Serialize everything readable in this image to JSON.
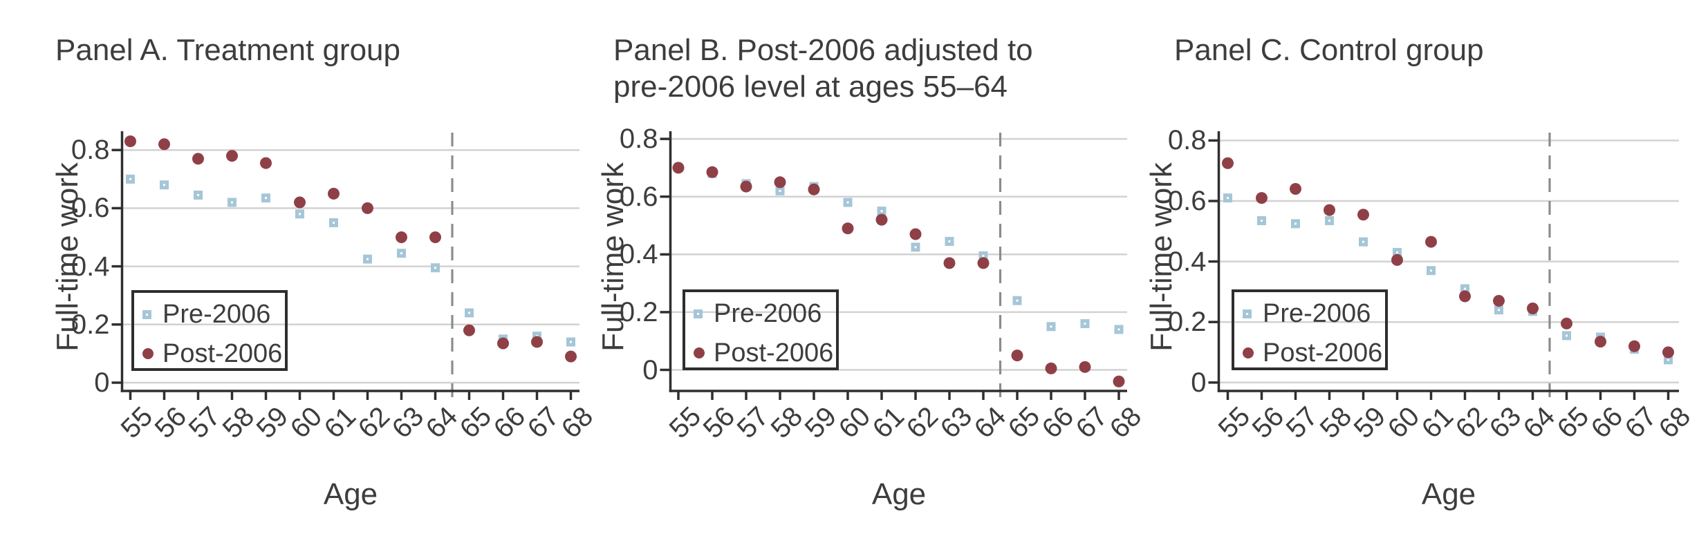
{
  "figure": {
    "xlabel": "Age",
    "ylabel": "Full-time work"
  },
  "legend": {
    "pre_label": "Pre-2006",
    "post_label": "Post-2006"
  },
  "colors": {
    "pre_marker": "#a5c6d7",
    "pre_marker_dot": "#ffffff",
    "post_marker": "#8f4046",
    "gridline": "#d2d2d2",
    "axis": "#2f2f2f",
    "dashed_line": "#8c8c8c",
    "text": "#3d3d3d"
  },
  "chart_data": {
    "type": "scatter",
    "x": [
      55,
      56,
      57,
      58,
      59,
      60,
      61,
      62,
      63,
      64,
      65,
      66,
      67,
      68
    ],
    "xlabel": "Age",
    "ylabel": "Full-time work",
    "yticks": [
      0,
      0.2,
      0.4,
      0.6,
      0.8
    ],
    "ytick_labels": [
      "0",
      "0.2",
      "0.4",
      "0.6",
      "0.8"
    ],
    "grid": true,
    "legend_position": "lower-left-inside",
    "vline_x": 64.5,
    "panels": [
      {
        "id": "A",
        "title": "Panel A. Treatment group",
        "ylim": [
          -0.028,
          0.861
        ],
        "series": [
          {
            "name": "Pre-2006",
            "marker": "square",
            "values": [
              0.7,
              0.68,
              0.645,
              0.62,
              0.635,
              0.58,
              0.55,
              0.425,
              0.445,
              0.395,
              0.24,
              0.15,
              0.16,
              0.14
            ]
          },
          {
            "name": "Post-2006",
            "marker": "circle",
            "values": [
              0.83,
              0.82,
              0.77,
              0.78,
              0.755,
              0.62,
              0.65,
              0.6,
              0.5,
              0.5,
              0.18,
              0.135,
              0.14,
              0.09
            ]
          }
        ]
      },
      {
        "id": "B",
        "title": "Panel B. Post-2006 adjusted to\npre-2006 level at ages 55–64",
        "ylim": [
          -0.073,
          0.822
        ],
        "series": [
          {
            "name": "Pre-2006",
            "marker": "square",
            "values": [
              0.7,
              0.68,
              0.645,
              0.62,
              0.635,
              0.58,
              0.55,
              0.425,
              0.445,
              0.395,
              0.24,
              0.15,
              0.16,
              0.14
            ]
          },
          {
            "name": "Post-2006",
            "marker": "circle",
            "values": [
              0.7,
              0.685,
              0.635,
              0.65,
              0.625,
              0.49,
              0.52,
              0.47,
              0.37,
              0.37,
              0.05,
              0.005,
              0.01,
              -0.04
            ]
          }
        ]
      },
      {
        "id": "C",
        "title": "Panel C. Control group",
        "ylim": [
          -0.028,
          0.826
        ],
        "series": [
          {
            "name": "Pre-2006",
            "marker": "square",
            "values": [
              0.61,
              0.535,
              0.525,
              0.535,
              0.465,
              0.43,
              0.37,
              0.31,
              0.24,
              0.235,
              0.155,
              0.15,
              0.11,
              0.075
            ]
          },
          {
            "name": "Post-2006",
            "marker": "circle",
            "values": [
              0.725,
              0.61,
              0.64,
              0.57,
              0.555,
              0.405,
              0.465,
              0.285,
              0.27,
              0.245,
              0.195,
              0.135,
              0.12,
              0.1
            ]
          }
        ]
      }
    ]
  }
}
